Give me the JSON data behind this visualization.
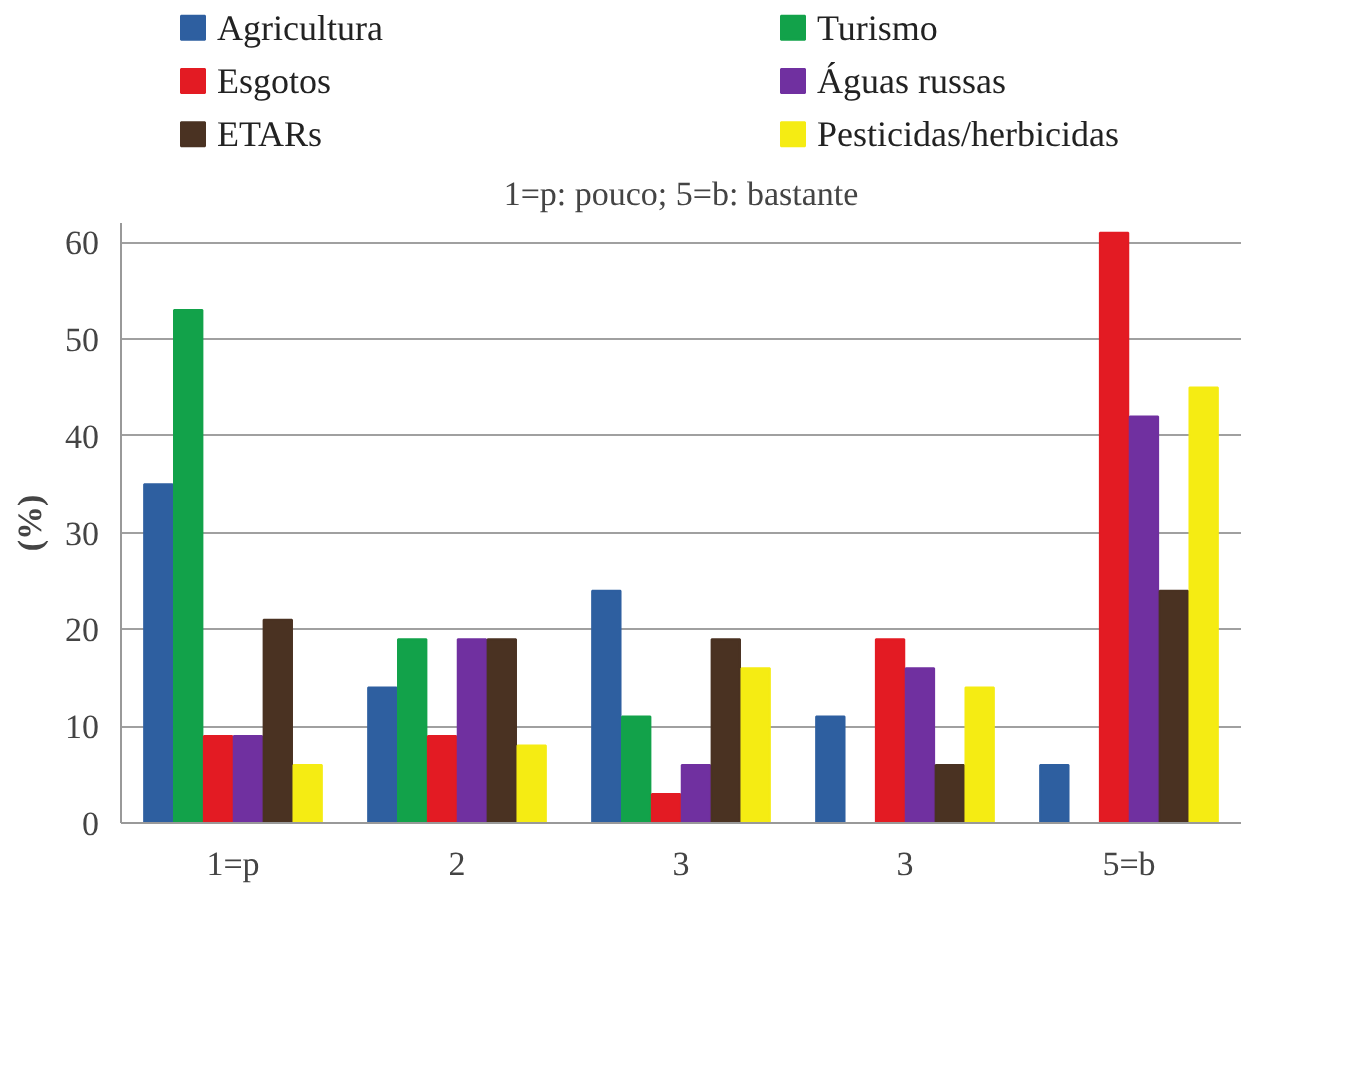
{
  "chart_data": {
    "type": "bar",
    "title": "1=p: pouco; 5=b: bastante",
    "ylabel": "(%)",
    "categories": [
      "1=p",
      "2",
      "3",
      "3",
      "5=b"
    ],
    "series": [
      {
        "name": "Agricultura",
        "color": "#2e5fa0",
        "values": [
          35,
          14,
          24,
          11,
          6
        ]
      },
      {
        "name": "Turismo",
        "color": "#12a24a",
        "values": [
          53,
          19,
          11,
          null,
          null
        ]
      },
      {
        "name": "Esgotos",
        "color": "#e31b23",
        "values": [
          9,
          9,
          3,
          19,
          61
        ]
      },
      {
        "name": "Águas russas",
        "color": "#7030a0",
        "values": [
          9,
          19,
          6,
          16,
          42
        ]
      },
      {
        "name": "ETARs",
        "color": "#4a3222",
        "values": [
          21,
          19,
          19,
          6,
          24
        ]
      },
      {
        "name": "Pesticidas/herbicidas",
        "color": "#f5ec13",
        "values": [
          6,
          8,
          16,
          14,
          45
        ]
      }
    ],
    "ylim": [
      0,
      62
    ],
    "yticks": [
      0,
      10,
      20,
      30,
      40,
      50,
      60
    ],
    "grid": "y",
    "legend": "top"
  }
}
